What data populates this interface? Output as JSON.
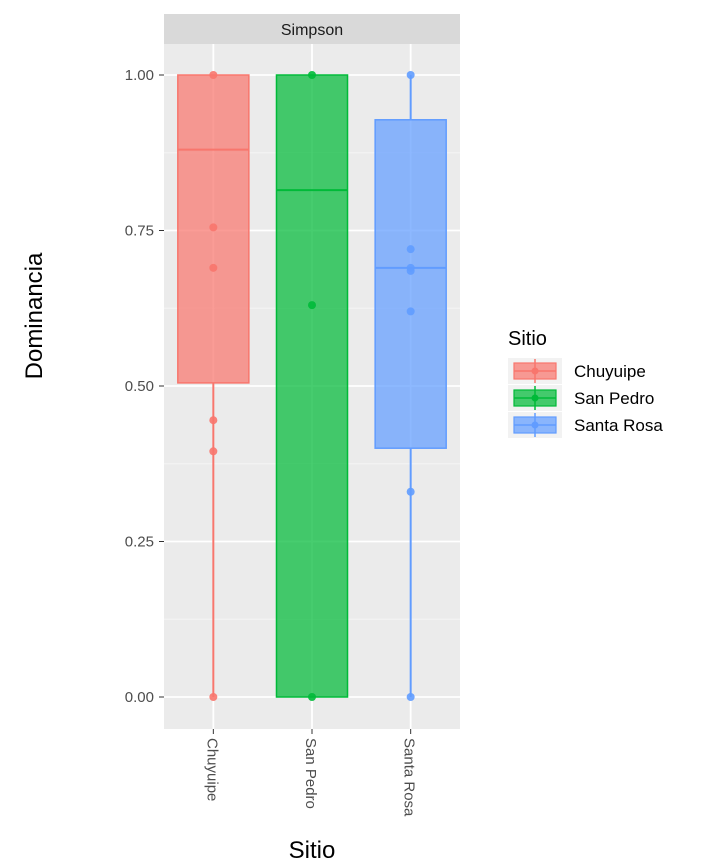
{
  "chart_data": {
    "type": "box",
    "facet": "Simpson",
    "xlabel": "Sitio",
    "ylabel": "Dominancia",
    "ylim": [
      -0.03,
      1.03
    ],
    "yticks": [
      0.0,
      0.25,
      0.5,
      0.75,
      1.0
    ],
    "ytick_labels": [
      "0.00",
      "0.25",
      "0.50",
      "0.75",
      "1.00"
    ],
    "categories": [
      "Chuyuipe",
      "San Pedro",
      "Santa Rosa"
    ],
    "legend": {
      "title": "Sitio",
      "position": "right",
      "entries": [
        "Chuyuipe",
        "San Pedro",
        "Santa Rosa"
      ]
    },
    "grid": true,
    "series": [
      {
        "name": "Chuyuipe",
        "color": "#F8766D",
        "min": 0.0,
        "q1": 0.505,
        "median": 0.88,
        "q3": 1.0,
        "max": 1.0,
        "points": [
          1.0,
          0.755,
          0.69,
          0.445,
          0.395,
          0.0
        ]
      },
      {
        "name": "San Pedro",
        "color": "#00BA38",
        "min": 0.0,
        "q1": 0.0,
        "median": 0.815,
        "q3": 1.0,
        "max": 1.0,
        "points": [
          1.0,
          0.63,
          0.0
        ]
      },
      {
        "name": "Santa Rosa",
        "color": "#619CFF",
        "min": 0.0,
        "q1": 0.4,
        "median": 0.69,
        "q3": 0.928,
        "max": 1.0,
        "points": [
          1.0,
          0.72,
          0.69,
          0.685,
          0.62,
          0.33,
          0.0
        ]
      }
    ]
  }
}
